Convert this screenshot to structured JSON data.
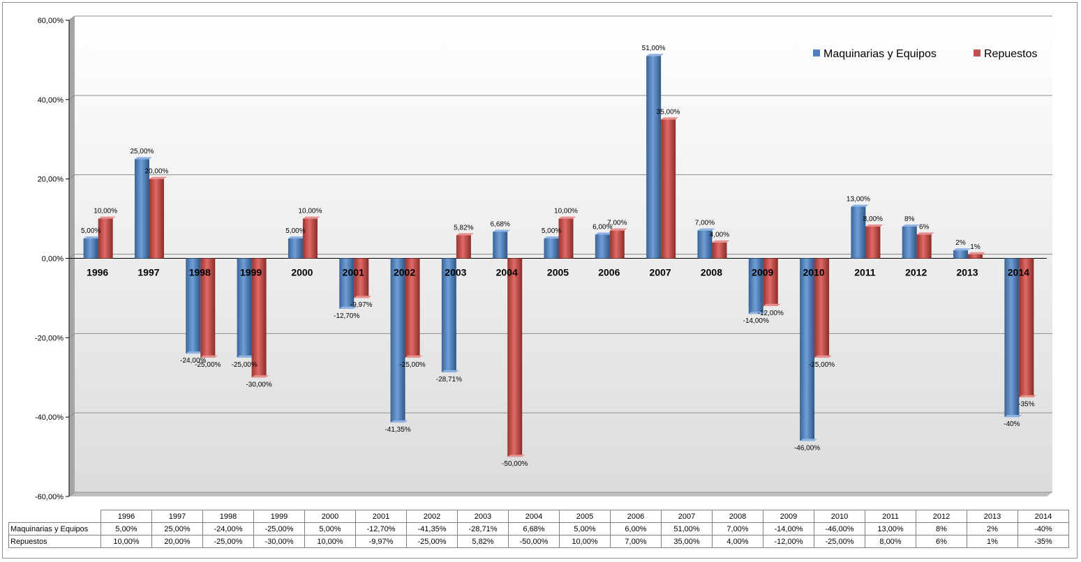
{
  "chart_data": {
    "type": "bar",
    "categories": [
      "1996",
      "1997",
      "1998",
      "1999",
      "2000",
      "2001",
      "2002",
      "2003",
      "2004",
      "2005",
      "2006",
      "2007",
      "2008",
      "2009",
      "2010",
      "2011",
      "2012",
      "2013",
      "2014"
    ],
    "series": [
      {
        "name": "Maquinarias y Equipos",
        "color": "#4f81bd",
        "values": [
          5,
          25,
          -24,
          -25,
          5,
          -12.7,
          -41.35,
          -28.71,
          6.68,
          5,
          6,
          51,
          7,
          -14,
          -46,
          13,
          8,
          2,
          -40
        ],
        "labels": [
          "5,00%",
          "25,00%",
          "-24,00%",
          "-25,00%",
          "5,00%",
          "-12,70%",
          "-41,35%",
          "-28,71%",
          "6,68%",
          "5,00%",
          "6,00%",
          "51,00%",
          "7,00%",
          "-14,00%",
          "-46,00%",
          "13,00%",
          "8%",
          "2%",
          "-40%"
        ]
      },
      {
        "name": "Repuestos",
        "color": "#c0504d",
        "values": [
          10,
          20,
          -25,
          -30,
          10,
          -9.97,
          -25,
          5.82,
          -50,
          10,
          7,
          35,
          4,
          -12,
          -25,
          8,
          6,
          1,
          -35
        ],
        "labels": [
          "10,00%",
          "20,00%",
          "-25,00%",
          "-30,00%",
          "10,00%",
          "-9,97%",
          "-25,00%",
          "5,82%",
          "-50,00%",
          "10,00%",
          "7,00%",
          "35,00%",
          "4,00%",
          "-12,00%",
          "-25,00%",
          "8,00%",
          "6%",
          "1%",
          "-35%"
        ]
      }
    ],
    "ylim": [
      -60,
      60
    ],
    "yticks": [
      60,
      40,
      20,
      0,
      -20,
      -40,
      -60
    ],
    "ytick_labels": [
      "60,00%",
      "40,00%",
      "20,00%",
      "0,00%",
      "-20,00%",
      "-40,00%",
      "-60,00%"
    ],
    "grid": true,
    "legend_position": "top-right",
    "data_table": true
  }
}
